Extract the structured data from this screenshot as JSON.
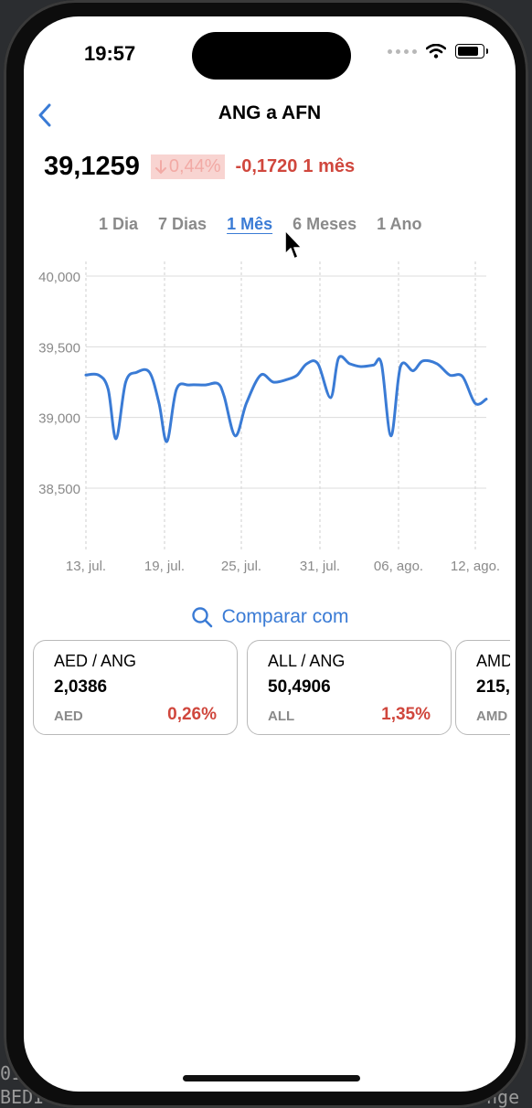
{
  "status_bar": {
    "time": "19:57"
  },
  "nav": {
    "title": "ANG a AFN"
  },
  "price": {
    "value": "39,1259",
    "percent": "0,44%",
    "change": "-0,1720",
    "period": "1 mês"
  },
  "range_tabs": [
    {
      "label": "1 Dia"
    },
    {
      "label": "7 Dias"
    },
    {
      "label": "1 Mês"
    },
    {
      "label": "6 Meses"
    },
    {
      "label": "1 Ano"
    }
  ],
  "chart_data": {
    "type": "line",
    "y_ticks": [
      "40,000",
      "39,500",
      "39,000",
      "38,500"
    ],
    "x_ticks": [
      "13, jul.",
      "19, jul.",
      "25, jul.",
      "31, jul.",
      "06, ago.",
      "12, ago."
    ],
    "ylim": [
      38000,
      40200
    ],
    "series": [
      {
        "color": "#3a7bd5",
        "values": [
          [
            0,
            39300
          ],
          [
            0.8,
            39300
          ],
          [
            1.4,
            39200
          ],
          [
            1.9,
            38850
          ],
          [
            2.5,
            39250
          ],
          [
            3.2,
            39320
          ],
          [
            4,
            39320
          ],
          [
            4.6,
            39100
          ],
          [
            5.1,
            38830
          ],
          [
            5.7,
            39200
          ],
          [
            6.5,
            39230
          ],
          [
            7.5,
            39230
          ],
          [
            8.3,
            39240
          ],
          [
            8.7,
            39150
          ],
          [
            9.4,
            38870
          ],
          [
            10.1,
            39100
          ],
          [
            11,
            39300
          ],
          [
            11.8,
            39250
          ],
          [
            12.7,
            39270
          ],
          [
            13.3,
            39300
          ],
          [
            13.9,
            39380
          ],
          [
            14.6,
            39380
          ],
          [
            15.4,
            39140
          ],
          [
            15.9,
            39420
          ],
          [
            16.6,
            39380
          ],
          [
            17.3,
            39360
          ],
          [
            18.1,
            39370
          ],
          [
            18.6,
            39380
          ],
          [
            19.2,
            38870
          ],
          [
            19.8,
            39360
          ],
          [
            20.6,
            39330
          ],
          [
            21.2,
            39400
          ],
          [
            22.1,
            39380
          ],
          [
            22.9,
            39300
          ],
          [
            23.7,
            39290
          ],
          [
            24.5,
            39100
          ],
          [
            25.2,
            39130
          ]
        ]
      }
    ],
    "grid": true
  },
  "compare": {
    "label": "Comparar com"
  },
  "cards": [
    {
      "pair": "AED / ANG",
      "value": "2,0386",
      "code": "AED",
      "pct": "0,26%"
    },
    {
      "pair": "ALL / ANG",
      "value": "50,4906",
      "code": "ALL",
      "pct": "1,35%"
    },
    {
      "pair": "AMD / ANG",
      "value": "215,",
      "code": "AMD",
      "pct": ""
    }
  ]
}
